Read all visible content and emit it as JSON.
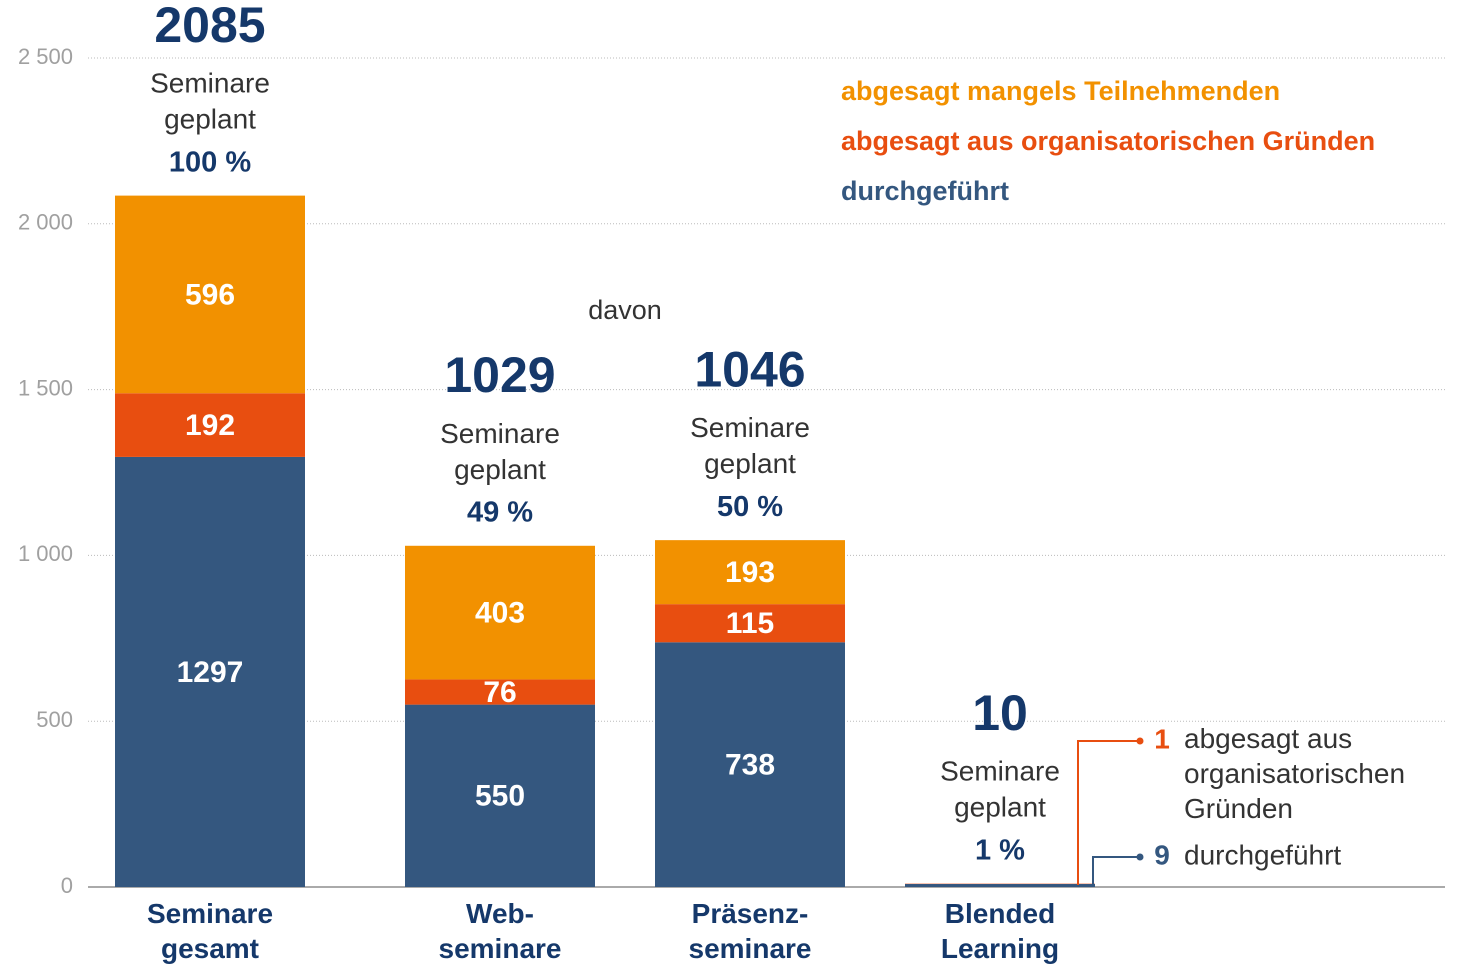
{
  "chart_data": {
    "type": "stacked_bar",
    "categories": [
      "Seminare\ngesamt",
      "Web-\nseminare",
      "Präsenz-\nseminare",
      "Blended\nLearning"
    ],
    "series": [
      {
        "name": "durchgeführt",
        "color": "#34577f",
        "values": [
          1297,
          550,
          738,
          9
        ]
      },
      {
        "name": "abgesagt aus organisatorischen Gründen",
        "color": "#e84e10",
        "values": [
          192,
          76,
          115,
          1
        ]
      },
      {
        "name": "abgesagt mangels Teilnehmenden",
        "color": "#f29100",
        "values": [
          596,
          403,
          193,
          0
        ]
      }
    ],
    "totals": [
      2085,
      1029,
      1046,
      10
    ],
    "total_sublabel": "Seminare\ngeplant",
    "percent_labels": [
      "100 %",
      "49 %",
      "50 %",
      "1 %"
    ],
    "annotation": "davon",
    "callouts": [
      "abgesagt aus\norganisatorischen\nGründen",
      "durchgeführt"
    ],
    "ylim": [
      0,
      2500
    ],
    "yticks": [
      0,
      500,
      {
        "value": 1000,
        "label": "1 000"
      },
      {
        "value": 1500,
        "label": "1 500"
      },
      {
        "value": 2000,
        "label": "2 000"
      },
      {
        "value": 2500,
        "label": "2 500"
      }
    ],
    "grid": true,
    "legend": "top-right"
  }
}
